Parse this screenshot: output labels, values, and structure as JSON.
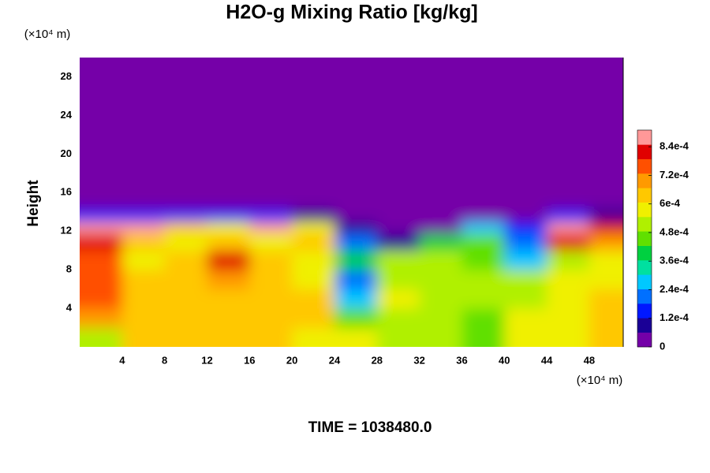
{
  "chart_data": {
    "type": "contour",
    "title": "H2O-g Mixing Ratio [kg/kg]",
    "y_label": "Height",
    "y_unit_label": "(×10⁴ m)",
    "x_unit_label": "(×10⁴ m)",
    "annotation": "TIME = 1038480.0",
    "xlim": [
      0,
      51.2
    ],
    "ylim": [
      0,
      30
    ],
    "xticks": [
      4,
      8,
      12,
      16,
      20,
      24,
      28,
      32,
      36,
      40,
      44,
      48
    ],
    "yticks": [
      4,
      8,
      12,
      16,
      20,
      24,
      28
    ],
    "clim": [
      0,
      0.00091
    ],
    "cticks": [
      0,
      {
        "value": 0.00012,
        "label": "1.2e-4"
      },
      {
        "value": 0.00024,
        "label": "2.4e-4"
      },
      {
        "value": 0.00036,
        "label": "3.6e-4"
      },
      {
        "value": 0.00048,
        "label": "4.8e-4"
      },
      {
        "value": 0.0006,
        "label": "6e-4"
      },
      {
        "value": 0.00072,
        "label": "7.2e-4"
      },
      {
        "value": 0.00084,
        "label": "8.4e-4"
      }
    ],
    "colors": [
      "#7400a8",
      "#1a0096",
      "#0018ff",
      "#0070ff",
      "#00c8ff",
      "#00e0a0",
      "#00d040",
      "#60e000",
      "#b0f000",
      "#f0f000",
      "#ffc800",
      "#ff9a00",
      "#ff5000",
      "#e00000",
      "#ff9898"
    ],
    "x": [
      2,
      6,
      10,
      14,
      18,
      22,
      26,
      30,
      34,
      38,
      42,
      46,
      50
    ],
    "y": [
      1,
      3,
      5,
      7,
      9,
      11,
      12.5,
      13.5,
      15,
      22,
      29
    ],
    "z": [
      [
        0.0005,
        0.00062,
        0.00062,
        0.00063,
        0.00063,
        0.0006,
        0.00055,
        0.00053,
        0.0005,
        0.00048,
        0.00055,
        0.0006,
        0.00062
      ],
      [
        0.0007,
        0.00065,
        0.00064,
        0.00063,
        0.00065,
        0.00064,
        0.00045,
        0.00054,
        0.00052,
        0.00048,
        0.00056,
        0.0006,
        0.00063
      ],
      [
        0.00075,
        0.00064,
        0.00062,
        0.00063,
        0.00065,
        0.00063,
        0.0003,
        0.00056,
        0.00053,
        0.00052,
        0.00054,
        0.00058,
        0.00061
      ],
      [
        0.00078,
        0.00062,
        0.00063,
        0.00068,
        0.00066,
        0.0006,
        0.0002,
        0.00053,
        0.00054,
        0.00052,
        0.0005,
        0.00056,
        0.00058
      ],
      [
        0.00075,
        0.0006,
        0.00066,
        0.0008,
        0.00066,
        0.0006,
        0.0004,
        0.0005,
        0.00052,
        0.00045,
        0.0003,
        0.0005,
        0.00055
      ],
      [
        0.0008,
        0.00064,
        0.0006,
        0.00062,
        0.0006,
        0.00065,
        0.0002,
        8e-05,
        0.0004,
        0.00045,
        0.0002,
        0.0008,
        0.0007
      ],
      [
        0.00085,
        0.00088,
        0.00065,
        0.0006,
        0.00085,
        0.0006,
        0.0001,
        3e-05,
        3e-05,
        0.0003,
        0.00015,
        0.00085,
        0.0008
      ],
      [
        0.00015,
        0.00015,
        0.00015,
        0.00015,
        0.00015,
        0.0001,
        5e-05,
        3e-05,
        0,
        5e-05,
        2e-05,
        0.00015,
        0.0001
      ],
      [
        0,
        0,
        0,
        0,
        0,
        0,
        0,
        0,
        0,
        0,
        0,
        0,
        0
      ],
      [
        0,
        0,
        0,
        0,
        0,
        0,
        0,
        0,
        0,
        0,
        0,
        0,
        0
      ],
      [
        0,
        0,
        0,
        0,
        0,
        0,
        0,
        0,
        0,
        0,
        0,
        0,
        0
      ]
    ]
  }
}
